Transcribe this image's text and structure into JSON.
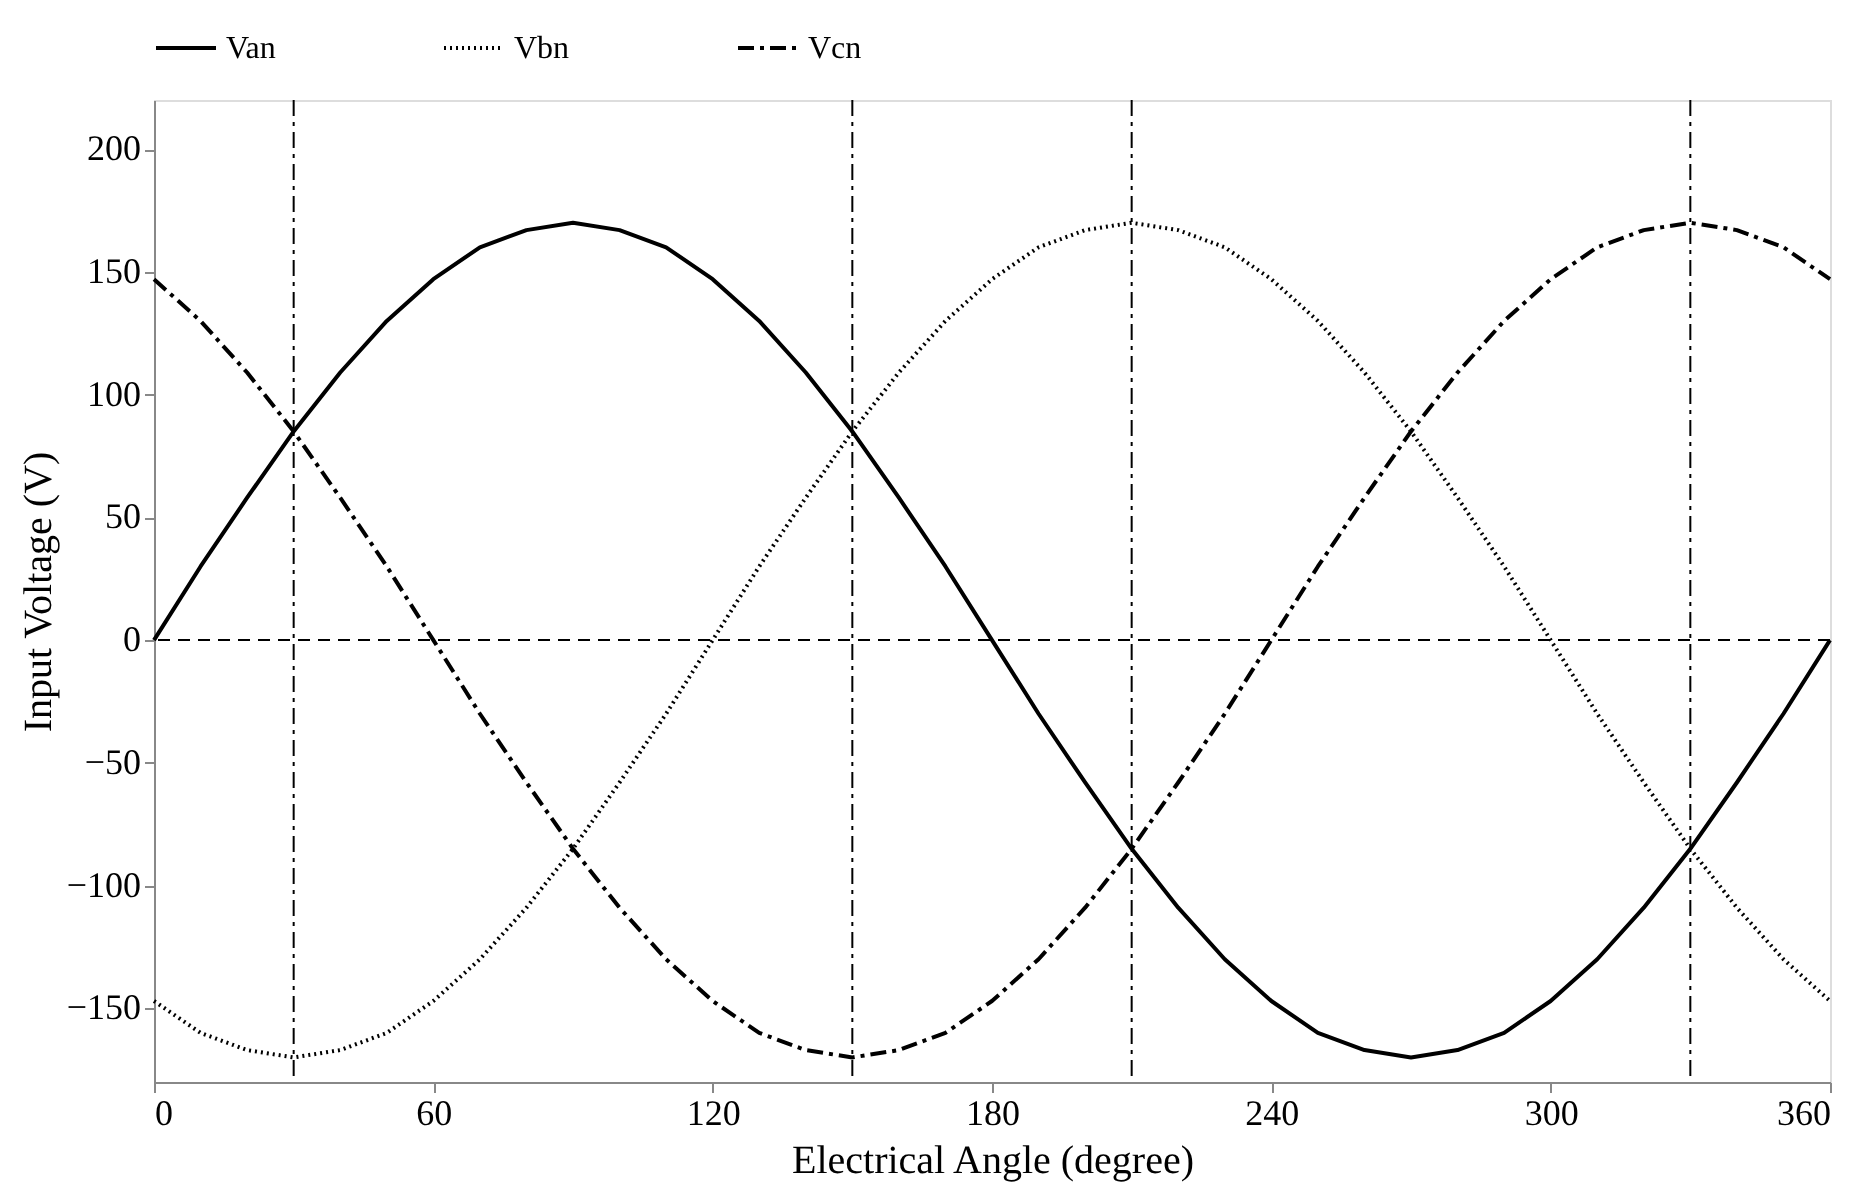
{
  "chart_data": {
    "type": "line",
    "xlabel": "Electrical Angle (degree)",
    "ylabel": "Input Voltage (V)",
    "x": [
      0,
      10,
      20,
      30,
      40,
      50,
      60,
      70,
      80,
      90,
      100,
      110,
      120,
      130,
      140,
      150,
      160,
      170,
      180,
      190,
      200,
      210,
      220,
      230,
      240,
      250,
      260,
      270,
      280,
      290,
      300,
      310,
      320,
      330,
      340,
      350,
      360
    ],
    "series": [
      {
        "name": "Van",
        "color": "#000000",
        "line_style": "solid",
        "values": [
          0,
          30,
          58,
          85,
          109,
          130,
          147,
          160,
          167,
          170,
          167,
          160,
          147,
          130,
          109,
          85,
          58,
          30,
          0,
          -30,
          -58,
          -85,
          -109,
          -130,
          -147,
          -160,
          -167,
          -170,
          -167,
          -160,
          -147,
          -130,
          -109,
          -85,
          -58,
          -30,
          0
        ]
      },
      {
        "name": "Vbn",
        "color": "#000000",
        "line_style": "dotted",
        "values": [
          -147,
          -160,
          -167,
          -170,
          -167,
          -160,
          -147,
          -130,
          -109,
          -85,
          -58,
          -30,
          0,
          30,
          58,
          85,
          109,
          130,
          147,
          160,
          167,
          170,
          167,
          160,
          147,
          130,
          109,
          85,
          58,
          30,
          0,
          -30,
          -58,
          -85,
          -109,
          -130,
          -147
        ]
      },
      {
        "name": "Vcn",
        "color": "#000000",
        "line_style": "dashdot",
        "values": [
          147,
          130,
          109,
          85,
          58,
          30,
          0,
          -30,
          -58,
          -85,
          -109,
          -130,
          -147,
          -160,
          -167,
          -170,
          -167,
          -160,
          -147,
          -130,
          -109,
          -85,
          -58,
          -30,
          0,
          30,
          58,
          85,
          109,
          130,
          147,
          160,
          167,
          170,
          167,
          160,
          147
        ]
      }
    ],
    "xlim": [
      0,
      360
    ],
    "xticks": [
      0,
      60,
      120,
      180,
      240,
      300,
      360
    ],
    "ylim": [
      -180,
      220
    ],
    "yticks": [
      -150,
      -100,
      -50,
      0,
      50,
      100,
      150,
      200
    ],
    "ref_lines": [
      {
        "axis": "y",
        "value": 0,
        "line_style": "dashed"
      },
      {
        "axis": "x",
        "value": 30,
        "line_style": "dashdot"
      },
      {
        "axis": "x",
        "value": 150,
        "line_style": "dashdot"
      },
      {
        "axis": "x",
        "value": 210,
        "line_style": "dashdot"
      },
      {
        "axis": "x",
        "value": 330,
        "line_style": "dashdot"
      }
    ],
    "grid": false,
    "legend": "top",
    "marker": "none"
  }
}
